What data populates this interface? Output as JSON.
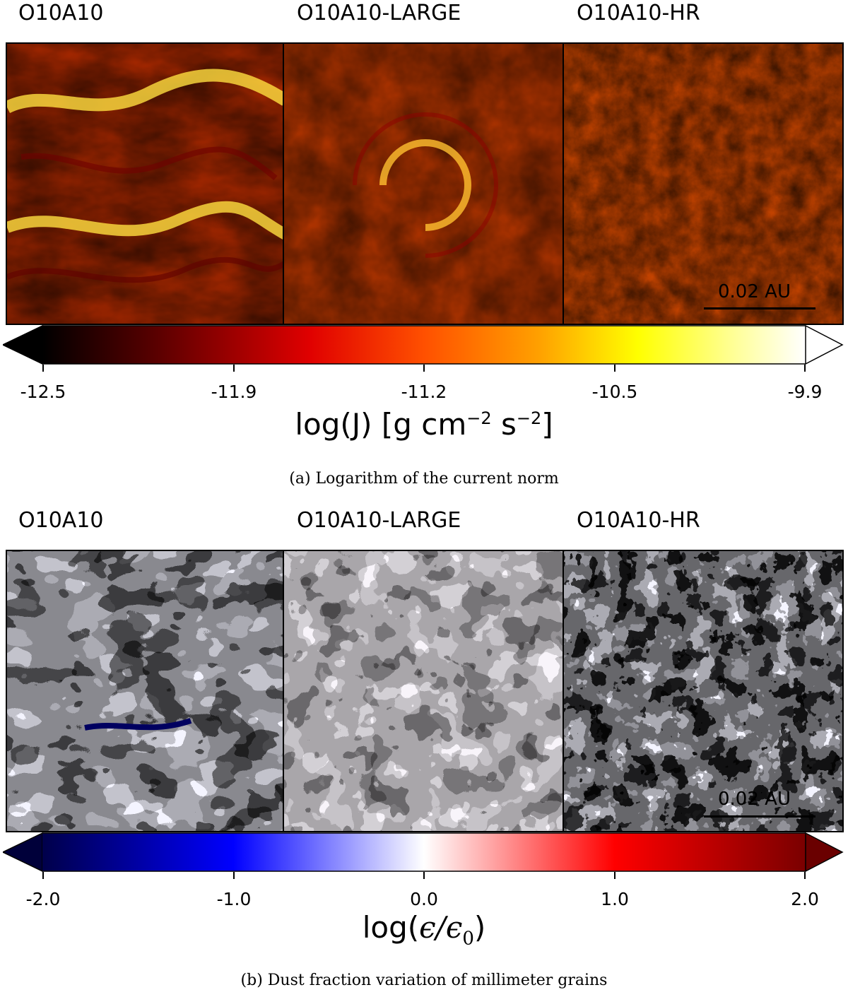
{
  "figure_a": {
    "panel_titles": [
      "O10A10",
      "O10A10-LARGE",
      "O10A10-HR"
    ],
    "colorbar": {
      "ticks": [
        "-12.5",
        "-11.9",
        "-11.2",
        "-10.5",
        "-9.9"
      ],
      "label": "log(J) [g cm",
      "unit_exp": "−2",
      "unit_s": " s",
      "unit_exp2": "−2",
      "unit_close": "]",
      "colors": [
        "#000000",
        "#5a0000",
        "#c80000",
        "#ff4000",
        "#ff9000",
        "#ffd000",
        "#ffff40",
        "#ffffff"
      ]
    },
    "scale_bar": "0.02 AU",
    "caption": "(a) Logarithm of the current norm"
  },
  "figure_b": {
    "panel_titles": [
      "O10A10",
      "O10A10-LARGE",
      "O10A10-HR"
    ],
    "colorbar": {
      "ticks": [
        "-2.0",
        "-1.0",
        "0.0",
        "1.0",
        "2.0"
      ],
      "label_left": "log(",
      "label_eps": "ϵ/ϵ",
      "label_sub": "0",
      "label_right": ")",
      "colors": [
        "#00004a",
        "#0000ff",
        "#ffffff",
        "#ff0000",
        "#6a0000"
      ]
    },
    "scale_bar": "0.02 AU",
    "caption": "(b) Dust fraction variation of millimeter grains"
  }
}
